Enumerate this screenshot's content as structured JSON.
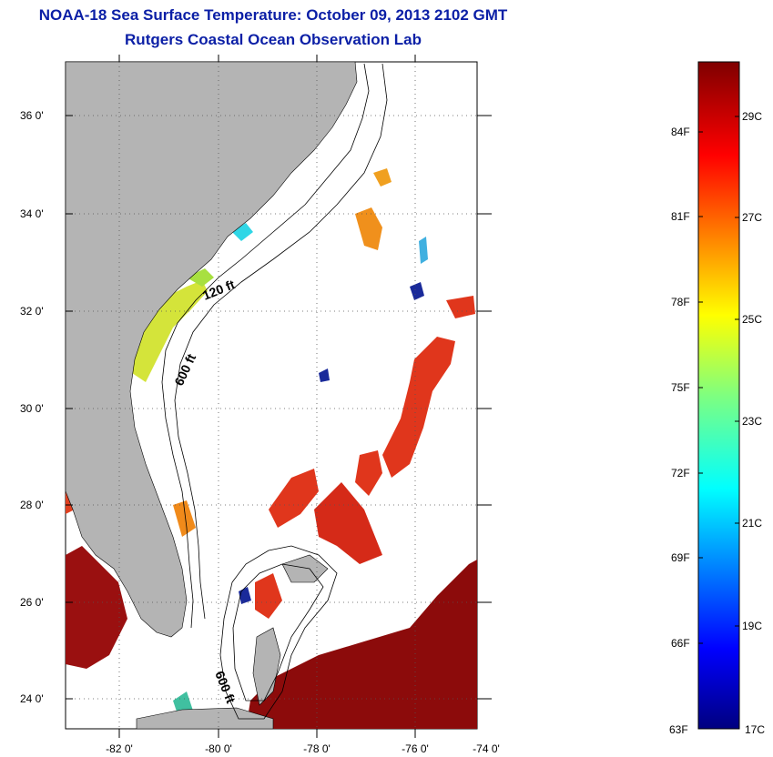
{
  "header": {
    "title": "NOAA-18 Sea Surface Temperature:  October 09, 2013 2102 GMT",
    "subtitle": "Rutgers Coastal Ocean Observation Lab"
  },
  "map": {
    "lat_labels": [
      "36 0'",
      "34 0'",
      "32 0'",
      "30 0'",
      "28 0'",
      "26 0'",
      "24 0'"
    ],
    "lon_labels": [
      "-82 0'",
      "-80 0'",
      "-78 0'",
      "-76 0'",
      "-74 0'"
    ],
    "contour_labels": [
      "120 ft",
      "600 ft",
      "600 ft"
    ],
    "colors": {
      "land": "#b4b4b4",
      "warm": "#e0361c",
      "hot": "#8c0b0b",
      "mid": "#d4e43a",
      "cool": "#2fd6e6",
      "cold": "#1a2a9a"
    }
  },
  "colorbar": {
    "f_labels": [
      "84F",
      "81F",
      "78F",
      "75F",
      "72F",
      "69F",
      "66F",
      "63F"
    ],
    "c_labels": [
      "29C",
      "27C",
      "25C",
      "23C",
      "21C",
      "19C",
      "17C"
    ]
  }
}
